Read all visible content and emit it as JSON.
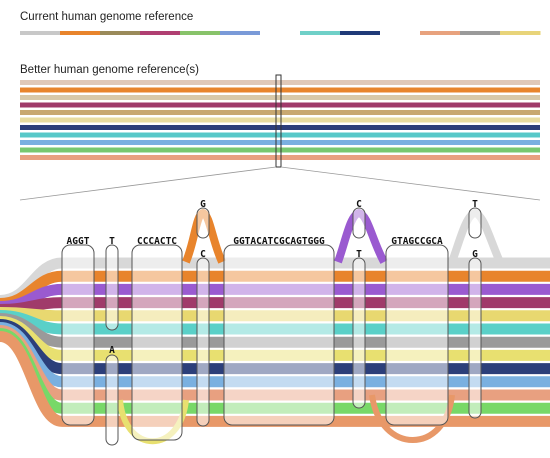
{
  "current_reference": {
    "label": "Current human genome reference",
    "segment_colors": [
      "#c8c8c8",
      "#e8842c",
      "#9a8a5a",
      "#b03f72",
      "#88c36a",
      "#7a9ad8",
      "#ffffff",
      "#6fd0c8",
      "#1f3a78",
      "#ffffff",
      "#e8a27e",
      "#9a9a9a",
      "#e8d47a"
    ]
  },
  "better_reference": {
    "label": "Better human genome reference(s)",
    "band_colors": [
      "#e0c8b8",
      "#e8842c",
      "#d8c8a8",
      "#a03a6a",
      "#c8a870",
      "#e8dca0",
      "#2c3f7a",
      "#58c8c8",
      "#7ab0e0",
      "#78c870",
      "#e8a080"
    ]
  },
  "graph": {
    "nodes": [
      {
        "label": "AGGT"
      },
      {
        "label": "T"
      },
      {
        "label": "A"
      },
      {
        "label": "CCCACTC"
      },
      {
        "label": "G"
      },
      {
        "label": "C"
      },
      {
        "label": "GGTACATCGCAGTGGG"
      },
      {
        "label": "C"
      },
      {
        "label": "T"
      },
      {
        "label": "GTAGCCGCA"
      },
      {
        "label": "T"
      },
      {
        "label": "G"
      }
    ],
    "path_colors": [
      "#d8d8d8",
      "#e8842c",
      "#9a5ad0",
      "#a03a6a",
      "#e8d870",
      "#5ad0c8",
      "#9a9a9a",
      "#e8e070",
      "#2c3f7a",
      "#7ab0e0",
      "#e8a080",
      "#78d868",
      "#e89868"
    ]
  }
}
